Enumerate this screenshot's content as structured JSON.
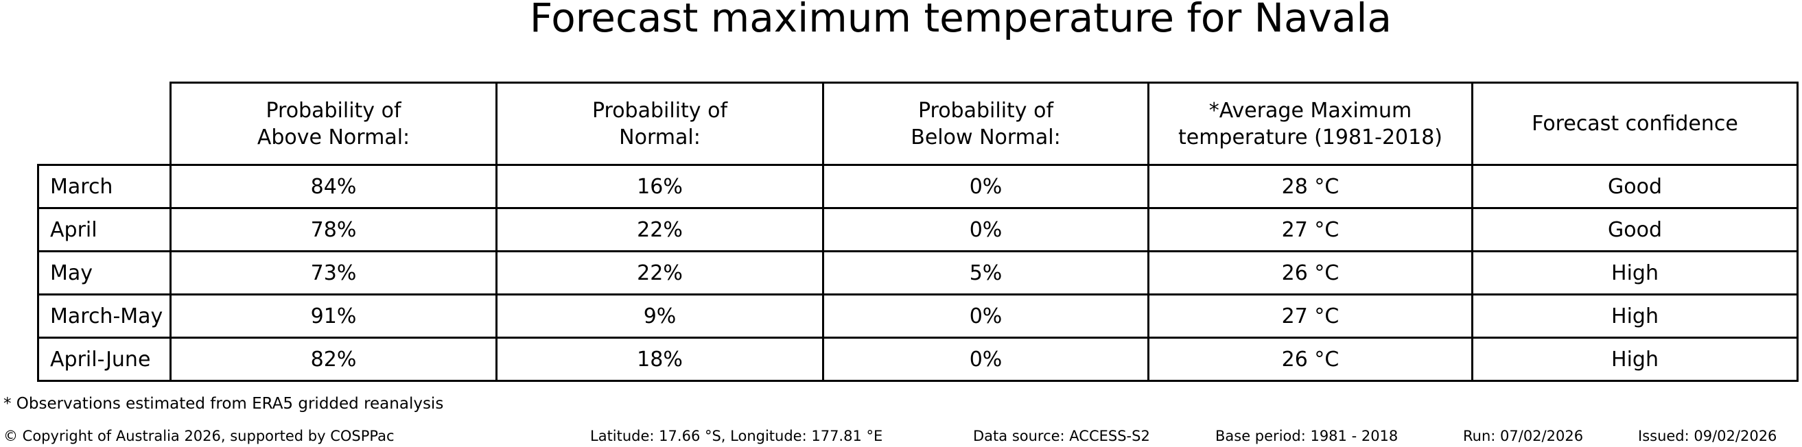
{
  "chart_data": {
    "type": "table",
    "title": "Forecast maximum temperature for Navala",
    "columns": [
      "",
      "Probability of\nAbove Normal:",
      "Probability of\nNormal:",
      "Probability of\nBelow Normal:",
      "*Average Maximum\ntemperature (1981-2018)",
      "Forecast confidence"
    ],
    "rows": [
      [
        "March",
        "84%",
        "16%",
        "0%",
        "28 °C",
        "Good"
      ],
      [
        "April",
        "78%",
        "22%",
        "0%",
        "27 °C",
        "Good"
      ],
      [
        "May",
        "73%",
        "22%",
        "5%",
        "26 °C",
        "High"
      ],
      [
        "March-May",
        "91%",
        "9%",
        "0%",
        "27 °C",
        "High"
      ],
      [
        "April-June",
        "82%",
        "18%",
        "0%",
        "26 °C",
        "High"
      ]
    ],
    "layout_hints": {
      "row_header_column": "forecast periods",
      "header_row_has_empty_first_cell": true,
      "grid": "all-borders"
    }
  },
  "footnote": "* Observations estimated from ERA5 gridded reanalysis",
  "footer": {
    "copyright": "© Copyright of Australia 2026, supported by COSPPac",
    "coordinates": "Latitude: 17.66 °S, Longitude: 177.81 °E",
    "data_source": "Data source: ACCESS-S2",
    "base_period": "Base period: 1981 - 2018",
    "run": "Run: 07/02/2026",
    "issued": "Issued: 09/02/2026"
  },
  "colors": {
    "text": "#000000",
    "border": "#000000",
    "background": "#ffffff"
  }
}
